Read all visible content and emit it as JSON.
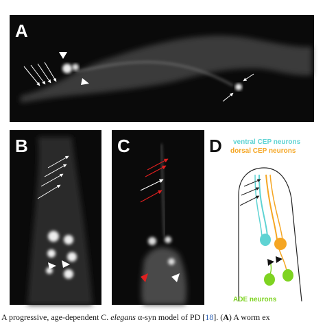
{
  "panels": [
    {
      "label": "A"
    },
    {
      "label": "B"
    },
    {
      "label": "C"
    },
    {
      "label": "D",
      "annotations": [
        "ventral CEP neurons",
        "dorsal CEP neurons",
        "ADE neurons"
      ]
    }
  ],
  "caption": {
    "parts": [
      "A progressive, age-dependent C. ",
      "elegans",
      " α-syn model of PD [",
      "18",
      "]. (",
      "A",
      ") A worm ex"
    ]
  }
}
